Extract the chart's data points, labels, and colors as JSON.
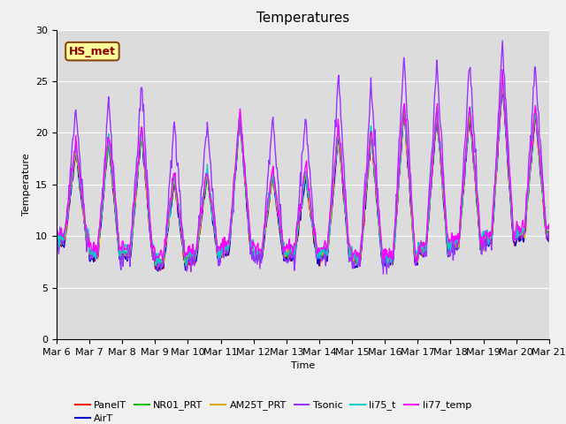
{
  "title": "Temperatures",
  "xlabel": "Time",
  "ylabel": "Temperature",
  "ylim": [
    0,
    30
  ],
  "yticks": [
    0,
    5,
    10,
    15,
    20,
    25,
    30
  ],
  "xtick_labels": [
    "Mar 6",
    "Mar 7",
    "Mar 8",
    "Mar 9",
    "Mar 10",
    "Mar 11",
    "Mar 12",
    "Mar 13",
    "Mar 14",
    "Mar 15",
    "Mar 16",
    "Mar 17",
    "Mar 18",
    "Mar 19",
    "Mar 20",
    "Mar 21"
  ],
  "annotation_text": "HS_met",
  "series_colors": {
    "PanelT": "#ff0000",
    "AirT": "#0000cc",
    "NR01_PRT": "#00bb00",
    "AM25T_PRT": "#ddaa00",
    "Tsonic": "#9933ff",
    "li75_t": "#00cccc",
    "li77_temp": "#ff00ff"
  },
  "series_order": [
    "PanelT",
    "AirT",
    "NR01_PRT",
    "AM25T_PRT",
    "Tsonic",
    "li75_t",
    "li77_temp"
  ],
  "plot_background": "#dcdcdc",
  "fig_background": "#f0f0f0",
  "title_fontsize": 11,
  "axis_fontsize": 8,
  "legend_fontsize": 8,
  "linewidth": 1.0,
  "grid_color": "#ffffff",
  "annotation_facecolor": "#ffff99",
  "annotation_edgecolor": "#8B4513",
  "annotation_textcolor": "#8B0000"
}
